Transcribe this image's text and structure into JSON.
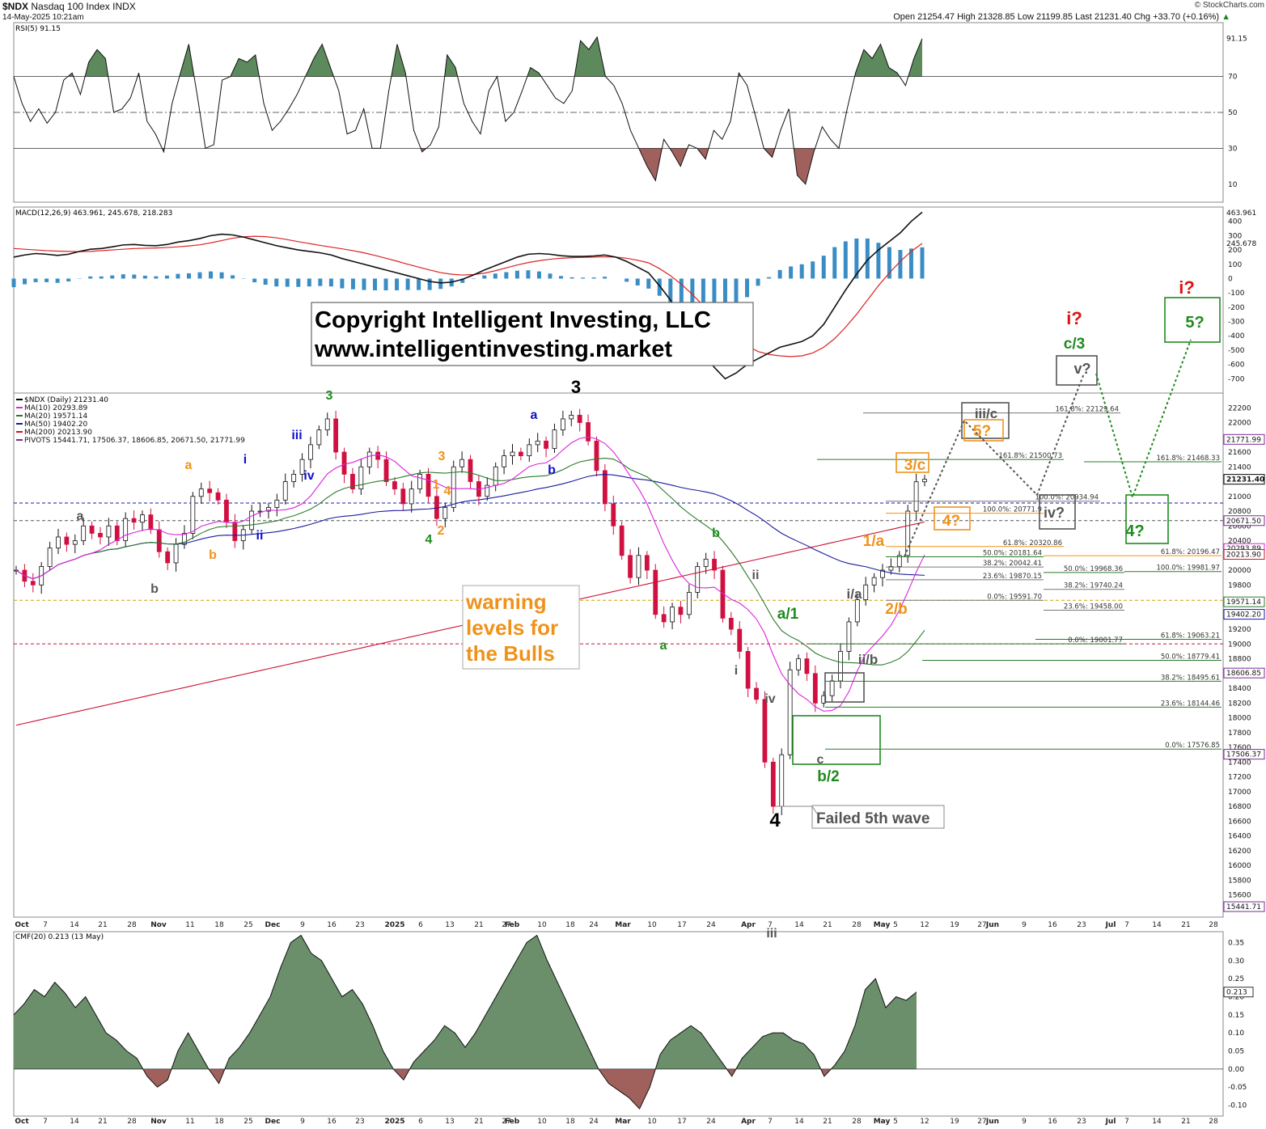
{
  "header": {
    "symbol": "$NDX",
    "name": "Nasdaq 100 Index",
    "exchange": "INDX",
    "datetime": "14-May-2025 10:21am",
    "ohlc": "Open 21254.47  High 21328.85  Low 21199.85  Last 21231.40  Chg +33.70 (+0.16%)",
    "up_marker": "▲",
    "watermark": "© StockCharts.com"
  },
  "colors": {
    "rsi_fill_high": "#5c8a5c",
    "rsi_fill_low": "#a0605c",
    "macd_line": "#111111",
    "macd_signal": "#dd2222",
    "macd_hist": "#3a8dc4",
    "ma10": "#dd22dd",
    "ma20": "#2a7a2a",
    "ma50": "#1a1aa0",
    "ma200": "#cc1133",
    "pivots": "#7a2a9a",
    "candle_down": "#d01040",
    "cmf_pos": "#6a8f6a",
    "cmf_neg": "#a0605c",
    "orange": "#f0921a",
    "green": "#1f8a1f",
    "grey": "#555555",
    "red": "#dd1111",
    "blue": "#1010cc"
  },
  "copyright": {
    "line1": "Copyright Intelligent Investing, LLC",
    "line2": "www.intelligentinvesting.market"
  },
  "warning_text": [
    "warning",
    "levels for",
    "the Bulls"
  ],
  "failed_text": "Failed 5th wave",
  "chart_data": [
    {
      "type": "line",
      "panel": "rsi",
      "title": "RSI(5) 91.15",
      "last_value": "91.15",
      "ylim": [
        0,
        100
      ],
      "yticks": [
        "70",
        "50",
        "30",
        "10"
      ],
      "reference_lines": [
        70,
        50,
        30
      ],
      "values": [
        70,
        55,
        45,
        52,
        44,
        50,
        68,
        72,
        60,
        78,
        85,
        80,
        50,
        52,
        58,
        72,
        45,
        38,
        28,
        55,
        72,
        88,
        60,
        30,
        32,
        68,
        70,
        80,
        78,
        82,
        55,
        40,
        45,
        52,
        60,
        70,
        80,
        88,
        75,
        62,
        38,
        40,
        52,
        30,
        30,
        62,
        88,
        72,
        40,
        28,
        32,
        42,
        82,
        75,
        55,
        45,
        38,
        62,
        70,
        45,
        50,
        62,
        75,
        72,
        65,
        58,
        55,
        62,
        90,
        85,
        92,
        70,
        65,
        55,
        40,
        30,
        20,
        12,
        35,
        28,
        20,
        32,
        30,
        24,
        40,
        35,
        45,
        72,
        65,
        48,
        30,
        25,
        40,
        52,
        15,
        10,
        28,
        42,
        35,
        30,
        52,
        72,
        85,
        80,
        88,
        75,
        72,
        65,
        80,
        91.15
      ]
    },
    {
      "type": "line",
      "panel": "macd",
      "title": "MACD(12,26,9) 463.961, 245.678, 218.283",
      "values_text": [
        "463.961",
        "245.678",
        "218.283"
      ],
      "ylim": [
        -800,
        500
      ],
      "yticks": [
        "400",
        "300",
        "200",
        "100",
        "0",
        "-100",
        "-200",
        "-300",
        "-400",
        "-500",
        "-600",
        "-700"
      ],
      "series": [
        {
          "name": "MACD",
          "values": [
            150,
            165,
            175,
            170,
            162,
            170,
            190,
            205,
            210,
            222,
            235,
            238,
            232,
            230,
            238,
            255,
            265,
            280,
            300,
            310,
            305,
            290,
            270,
            250,
            230,
            215,
            200,
            190,
            180,
            165,
            140,
            120,
            100,
            80,
            60,
            40,
            20,
            0,
            -20,
            -30,
            -25,
            -5,
            25,
            60,
            90,
            120,
            150,
            170,
            175,
            170,
            160,
            155,
            155,
            158,
            165,
            150,
            120,
            80,
            40,
            -50,
            -150,
            -280,
            -420,
            -520,
            -620,
            -700,
            -660,
            -600,
            -560,
            -520,
            -480,
            -460,
            -440,
            -400,
            -320,
            -200,
            -80,
            30,
            130,
            200,
            260,
            320,
            400,
            463.961
          ]
        },
        {
          "name": "Signal",
          "values": [
            210,
            205,
            200,
            195,
            192,
            190,
            188,
            190,
            195,
            200,
            205,
            210,
            212,
            214,
            217,
            222,
            228,
            236,
            250,
            266,
            282,
            292,
            296,
            293,
            285,
            272,
            258,
            245,
            232,
            220,
            208,
            195,
            180,
            162,
            142,
            122,
            100,
            80,
            60,
            42,
            30,
            25,
            28,
            38,
            55,
            75,
            95,
            112,
            125,
            135,
            142,
            146,
            148,
            150,
            152,
            150,
            142,
            128,
            110,
            70,
            20,
            -40,
            -110,
            -190,
            -270,
            -350,
            -420,
            -470,
            -510,
            -530,
            -540,
            -545,
            -540,
            -520,
            -480,
            -420,
            -340,
            -250,
            -150,
            -50,
            40,
            120,
            190,
            245.678
          ]
        },
        {
          "name": "Histogram",
          "values": [
            -60,
            -40,
            -25,
            -25,
            -30,
            -20,
            2,
            15,
            15,
            22,
            30,
            28,
            20,
            16,
            21,
            33,
            37,
            44,
            50,
            44,
            23,
            -2,
            -26,
            -43,
            -55,
            -57,
            -58,
            -55,
            -52,
            -55,
            -68,
            -75,
            -80,
            -82,
            -82,
            -82,
            -80,
            -80,
            -80,
            -72,
            -55,
            -30,
            -3,
            22,
            35,
            45,
            55,
            58,
            50,
            35,
            18,
            9,
            7,
            8,
            13,
            0,
            -22,
            -48,
            -70,
            -120,
            -170,
            -240,
            -310,
            -330,
            -350,
            -350,
            -240,
            -130,
            -50,
            10,
            60,
            85,
            100,
            120,
            160,
            220,
            260,
            280,
            280,
            250,
            220,
            200,
            210,
            218.283
          ]
        }
      ]
    },
    {
      "type": "candlestick",
      "panel": "price",
      "title": "$NDX (Daily) 21231.40",
      "ylim": [
        15300,
        22400
      ],
      "yticks": [
        "22200",
        "22000",
        "21800",
        "21600",
        "21400",
        "21200",
        "21000",
        "20800",
        "20600",
        "20400",
        "20200",
        "20000",
        "19800",
        "19600",
        "19400",
        "19200",
        "19000",
        "18800",
        "18600",
        "18400",
        "18200",
        "18000",
        "17800",
        "17600",
        "17400",
        "17200",
        "17000",
        "16800",
        "16600",
        "16400",
        "16200",
        "16000",
        "15800",
        "15600"
      ],
      "last_value_tags": [
        "21771.99",
        "21231.40",
        "20671.50",
        "20293.89",
        "20213.90",
        "19571.14",
        "19402.20",
        "18606.85",
        "17506.37",
        "15441.71"
      ],
      "legend": [
        {
          "text": "$NDX (Daily) 21231.40",
          "color": "#000000"
        },
        {
          "text": "MA(10) 20293.89",
          "color": "#dd22dd"
        },
        {
          "text": "MA(20) 19571.14",
          "color": "#2a7a2a"
        },
        {
          "text": "MA(50) 19402.20",
          "color": "#1a1aa0"
        },
        {
          "text": "MA(200) 20213.90",
          "color": "#cc1133"
        },
        {
          "text": "PIVOTS 15441.71, 17506.37, 18606.85, 20671.50, 21771.99",
          "color": "#7a2a9a"
        }
      ],
      "x_labels": [
        "Oct",
        "7",
        "14",
        "21",
        "28",
        "Nov",
        "11",
        "18",
        "25",
        "Dec",
        "9",
        "16",
        "23",
        "2025",
        "6",
        "13",
        "21",
        "27",
        "Feb",
        "10",
        "18",
        "24",
        "Mar",
        "10",
        "17",
        "24",
        "Apr",
        "7",
        "14",
        "21",
        "28",
        "May",
        "5",
        "12",
        "19",
        "27",
        "Jun",
        "9",
        "16",
        "23",
        "Jul",
        "7",
        "14",
        "21",
        "28"
      ],
      "closes": [
        20000,
        19850,
        19800,
        20050,
        20300,
        20450,
        20350,
        20400,
        20600,
        20500,
        20450,
        20600,
        20400,
        20700,
        20650,
        20750,
        20550,
        20250,
        20100,
        20350,
        20500,
        21000,
        21100,
        21050,
        20950,
        20650,
        20400,
        20550,
        20800,
        20800,
        20850,
        20950,
        21200,
        21300,
        21500,
        21700,
        21900,
        22050,
        21600,
        21300,
        21100,
        21400,
        21600,
        21500,
        21200,
        21100,
        20900,
        21100,
        21300,
        21000,
        20700,
        20850,
        21400,
        21500,
        21200,
        21000,
        21150,
        21400,
        21550,
        21600,
        21550,
        21700,
        21750,
        21650,
        21900,
        22050,
        22100,
        22000,
        21750,
        21350,
        20900,
        20600,
        20200,
        19900,
        20200,
        20000,
        19400,
        19300,
        19500,
        19400,
        19700,
        20050,
        20150,
        20000,
        19350,
        19200,
        18900,
        18400,
        18250,
        17400,
        16800,
        17500,
        18650,
        18800,
        18600,
        18200,
        18300,
        18500,
        18900,
        19300,
        19600,
        19800,
        19900,
        20000,
        20050,
        20200,
        20800,
        21197.7,
        21231.4
      ],
      "fib_lines": [
        {
          "label": "161.8%: 22129.64",
          "value": 22129.64
        },
        {
          "label": "161.8%: 21500.73",
          "value": 21500.73
        },
        {
          "label": "161.8%: 21468.33",
          "value": 21468.33
        },
        {
          "label": "100.0%: 20934.94",
          "value": 20934.94
        },
        {
          "label": "100.0%: 20771.9",
          "value": 20771.9
        },
        {
          "label": "61.8%: 20320.86",
          "value": 20320.86
        },
        {
          "label": "50.0%: 20181.64",
          "value": 20181.64
        },
        {
          "label": "61.8%: 20196.47",
          "value": 20196.47
        },
        {
          "label": "38.2%: 20042.41",
          "value": 20042.41
        },
        {
          "label": "50.0%: 19968.36",
          "value": 19968.36
        },
        {
          "label": "100.0%: 19981.97",
          "value": 19981.97
        },
        {
          "label": "23.6%: 19870.15",
          "value": 19870.15
        },
        {
          "label": "38.2%: 19740.24",
          "value": 19740.24
        },
        {
          "label": "0.0%: 19591.70",
          "value": 19591.7
        },
        {
          "label": "23.6%: 19458.00",
          "value": 19458.0
        },
        {
          "label": "61.8%: 19063.21",
          "value": 19063.21
        },
        {
          "label": "0.0%: 19001.77",
          "value": 19001.77
        },
        {
          "label": "50.0%: 18779.41",
          "value": 18779.41
        },
        {
          "label": "38.2%: 18495.61",
          "value": 18495.61
        },
        {
          "label": "23.6%: 18144.46",
          "value": 18144.46
        },
        {
          "label": "0.0%: 17576.85",
          "value": 17576.85
        }
      ],
      "wave_labels": [
        {
          "text": "3",
          "color": "black"
        },
        {
          "text": "4",
          "color": "black"
        },
        {
          "text": "3",
          "color": "green"
        },
        {
          "text": "4",
          "color": "green"
        },
        {
          "text": "iii",
          "color": "blue"
        },
        {
          "text": "iv",
          "color": "blue"
        },
        {
          "text": "i",
          "color": "blue"
        },
        {
          "text": "ii",
          "color": "blue"
        },
        {
          "text": "a",
          "color": "blue"
        },
        {
          "text": "b",
          "color": "blue"
        },
        {
          "text": "a",
          "color": "orange"
        },
        {
          "text": "b",
          "color": "orange"
        },
        {
          "text": "1",
          "color": "orange"
        },
        {
          "text": "2",
          "color": "orange"
        },
        {
          "text": "3",
          "color": "orange"
        },
        {
          "text": "4",
          "color": "orange"
        },
        {
          "text": "a",
          "color": "grey"
        },
        {
          "text": "b",
          "color": "grey"
        },
        {
          "text": "ii",
          "color": "grey"
        },
        {
          "text": "iii",
          "color": "grey"
        },
        {
          "text": "iv",
          "color": "grey"
        },
        {
          "text": "i",
          "color": "grey"
        },
        {
          "text": "a",
          "color": "green"
        },
        {
          "text": "b",
          "color": "green"
        },
        {
          "text": "a/1",
          "color": "green"
        },
        {
          "text": "b/2",
          "color": "green"
        },
        {
          "text": "c/3",
          "color": "green"
        },
        {
          "text": "1/a",
          "color": "orange"
        },
        {
          "text": "2/b",
          "color": "orange"
        },
        {
          "text": "3/c",
          "color": "orange"
        },
        {
          "text": "4?",
          "color": "orange"
        },
        {
          "text": "5?",
          "color": "orange"
        },
        {
          "text": "i/a",
          "color": "grey"
        },
        {
          "text": "ii/b",
          "color": "grey"
        },
        {
          "text": "iii/c",
          "color": "grey"
        },
        {
          "text": "iv?",
          "color": "grey"
        },
        {
          "text": "v?",
          "color": "grey"
        },
        {
          "text": "4?",
          "color": "green"
        },
        {
          "text": "5?",
          "color": "green"
        },
        {
          "text": "i?",
          "color": "red"
        },
        {
          "text": "c",
          "color": "grey"
        }
      ]
    },
    {
      "type": "area",
      "panel": "cmf",
      "title": "CMF(20) 0.213 (13 May)",
      "last_value": "0.213",
      "ylim": [
        -0.13,
        0.38
      ],
      "yticks": [
        "0.35",
        "0.30",
        "0.25",
        "0.20",
        "0.15",
        "0.10",
        "0.05",
        "0.00",
        "-0.05",
        "-0.10"
      ],
      "x_labels": [
        "Oct",
        "7",
        "14",
        "21",
        "28",
        "Nov",
        "11",
        "18",
        "25",
        "Dec",
        "9",
        "16",
        "23",
        "2025",
        "6",
        "13",
        "21",
        "27",
        "Feb",
        "10",
        "18",
        "24",
        "Mar",
        "10",
        "17",
        "24",
        "Apr",
        "7",
        "14",
        "21",
        "28",
        "May",
        "5",
        "12",
        "19",
        "27",
        "Jun",
        "9",
        "16",
        "23",
        "Jul",
        "7",
        "14",
        "21",
        "28"
      ],
      "values": [
        0.15,
        0.18,
        0.22,
        0.2,
        0.24,
        0.21,
        0.17,
        0.2,
        0.15,
        0.1,
        0.08,
        0.05,
        0.03,
        -0.02,
        -0.05,
        -0.03,
        0.05,
        0.1,
        0.05,
        0.0,
        -0.04,
        0.03,
        0.06,
        0.1,
        0.15,
        0.2,
        0.28,
        0.35,
        0.37,
        0.32,
        0.3,
        0.25,
        0.2,
        0.22,
        0.18,
        0.12,
        0.05,
        0.0,
        -0.03,
        0.02,
        0.05,
        0.08,
        0.12,
        0.1,
        0.06,
        0.1,
        0.15,
        0.2,
        0.25,
        0.3,
        0.35,
        0.37,
        0.3,
        0.24,
        0.18,
        0.12,
        0.06,
        0.0,
        -0.04,
        -0.06,
        -0.08,
        -0.11,
        -0.05,
        0.04,
        0.08,
        0.1,
        0.12,
        0.1,
        0.06,
        0.02,
        -0.02,
        0.03,
        0.06,
        0.09,
        0.1,
        0.1,
        0.08,
        0.07,
        0.04,
        -0.02,
        0.01,
        0.05,
        0.12,
        0.22,
        0.25,
        0.17,
        0.2,
        0.19,
        0.213
      ]
    }
  ]
}
